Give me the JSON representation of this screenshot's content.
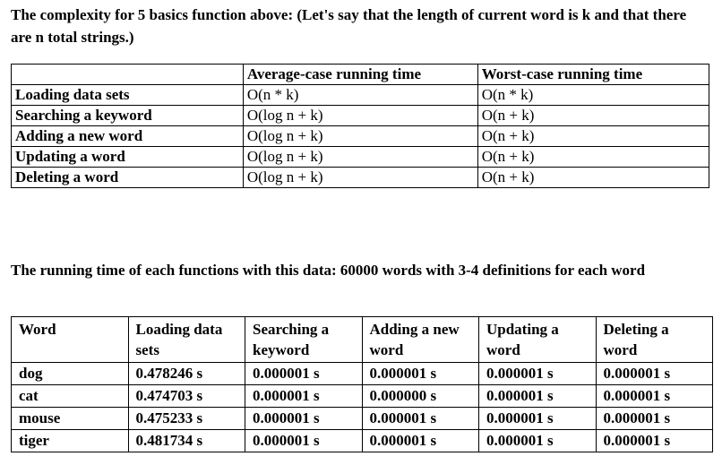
{
  "intro": "The complexity for 5 basics function above: (Let's say that the length of current word is k and that there are n total strings.)",
  "complexity_table": {
    "headers": [
      "",
      "Average-case running time",
      "Worst-case running time"
    ],
    "rows": [
      [
        "Loading data sets",
        "O(n * k)",
        "O(n * k)"
      ],
      [
        "Searching a keyword",
        "O(log n + k)",
        "O(n + k)"
      ],
      [
        "Adding a new word",
        "O(log n + k)",
        "O(n + k)"
      ],
      [
        "Updating a word",
        "O(log n + k)",
        "O(n + k)"
      ],
      [
        "Deleting a word",
        "O(log n + k)",
        "O(n + k)"
      ]
    ]
  },
  "timing_intro": "The running time of each functions with this data: 60000 words with 3-4 definitions for each word",
  "timing_table": {
    "headers": [
      "Word",
      "Loading data sets",
      "Searching a keyword",
      "Adding a new word",
      "Updating a word",
      "Deleting a word"
    ],
    "rows": [
      [
        "dog",
        "0.478246 s",
        "0.000001 s",
        "0.000001 s",
        "0.000001 s",
        "0.000001 s"
      ],
      [
        "cat",
        "0.474703 s",
        "0.000001 s",
        "0.000000 s",
        "0.000001 s",
        "0.000001 s"
      ],
      [
        "mouse",
        "0.475233 s",
        "0.000001 s",
        "0.000001 s",
        "0.000001 s",
        "0.000001 s"
      ],
      [
        "tiger",
        "0.481734 s",
        "0.000001 s",
        "0.000001 s",
        "0.000001 s",
        "0.000001 s"
      ]
    ]
  }
}
